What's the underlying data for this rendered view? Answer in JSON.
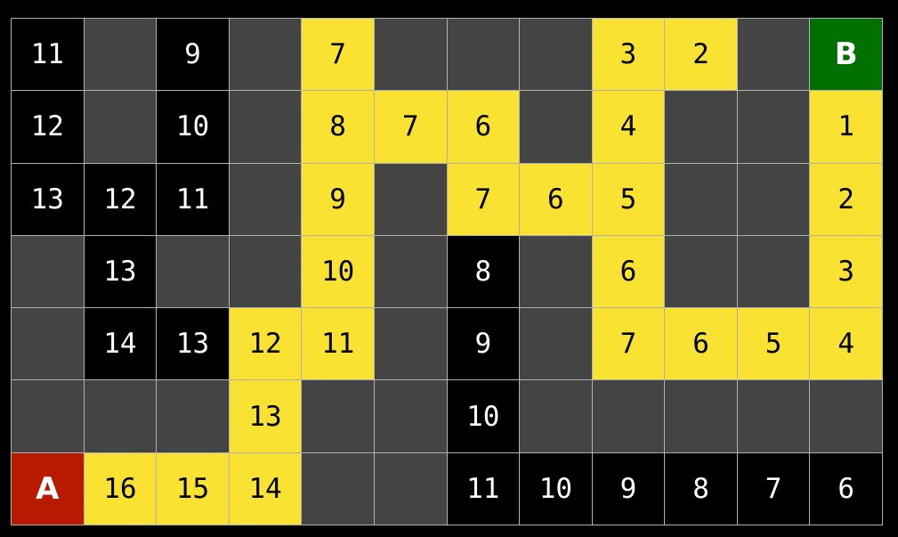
{
  "legend_colors": {
    "empty": "#444444",
    "explored": "#000000",
    "path": "#f9e231",
    "start": "#b81a00",
    "goal": "#007000"
  },
  "grid": [
    [
      [
        "11",
        "explored"
      ],
      [
        "",
        "empty"
      ],
      [
        "9",
        "explored"
      ],
      [
        "",
        "empty"
      ],
      [
        "7",
        "path"
      ],
      [
        "",
        "empty"
      ],
      [
        "",
        "empty"
      ],
      [
        "",
        "empty"
      ],
      [
        "3",
        "path"
      ],
      [
        "2",
        "path"
      ],
      [
        "",
        "empty"
      ],
      [
        "B",
        "goal"
      ]
    ],
    [
      [
        "12",
        "explored"
      ],
      [
        "",
        "empty"
      ],
      [
        "10",
        "explored"
      ],
      [
        "",
        "empty"
      ],
      [
        "8",
        "path"
      ],
      [
        "7",
        "path"
      ],
      [
        "6",
        "path"
      ],
      [
        "",
        "empty"
      ],
      [
        "4",
        "path"
      ],
      [
        "",
        "empty"
      ],
      [
        "",
        "empty"
      ],
      [
        "1",
        "path"
      ]
    ],
    [
      [
        "13",
        "explored"
      ],
      [
        "12",
        "explored"
      ],
      [
        "11",
        "explored"
      ],
      [
        "",
        "empty"
      ],
      [
        "9",
        "path"
      ],
      [
        "",
        "empty"
      ],
      [
        "7",
        "path"
      ],
      [
        "6",
        "path"
      ],
      [
        "5",
        "path"
      ],
      [
        "",
        "empty"
      ],
      [
        "",
        "empty"
      ],
      [
        "2",
        "path"
      ]
    ],
    [
      [
        "",
        "empty"
      ],
      [
        "13",
        "explored"
      ],
      [
        "",
        "empty"
      ],
      [
        "",
        "empty"
      ],
      [
        "10",
        "path"
      ],
      [
        "",
        "empty"
      ],
      [
        "8",
        "explored"
      ],
      [
        "",
        "empty"
      ],
      [
        "6",
        "path"
      ],
      [
        "",
        "empty"
      ],
      [
        "",
        "empty"
      ],
      [
        "3",
        "path"
      ]
    ],
    [
      [
        "",
        "empty"
      ],
      [
        "14",
        "explored"
      ],
      [
        "13",
        "explored"
      ],
      [
        "12",
        "path"
      ],
      [
        "11",
        "path"
      ],
      [
        "",
        "empty"
      ],
      [
        "9",
        "explored"
      ],
      [
        "",
        "empty"
      ],
      [
        "7",
        "path"
      ],
      [
        "6",
        "path"
      ],
      [
        "5",
        "path"
      ],
      [
        "4",
        "path"
      ]
    ],
    [
      [
        "",
        "empty"
      ],
      [
        "",
        "empty"
      ],
      [
        "",
        "empty"
      ],
      [
        "13",
        "path"
      ],
      [
        "",
        "empty"
      ],
      [
        "",
        "empty"
      ],
      [
        "10",
        "explored"
      ],
      [
        "",
        "empty"
      ],
      [
        "",
        "empty"
      ],
      [
        "",
        "empty"
      ],
      [
        "",
        "empty"
      ],
      [
        "",
        "empty"
      ]
    ],
    [
      [
        "A",
        "start"
      ],
      [
        "16",
        "path"
      ],
      [
        "15",
        "path"
      ],
      [
        "14",
        "path"
      ],
      [
        "",
        "empty"
      ],
      [
        "",
        "empty"
      ],
      [
        "11",
        "explored"
      ],
      [
        "10",
        "explored"
      ],
      [
        "9",
        "explored"
      ],
      [
        "8",
        "explored"
      ],
      [
        "7",
        "explored"
      ],
      [
        "6",
        "explored"
      ]
    ]
  ]
}
